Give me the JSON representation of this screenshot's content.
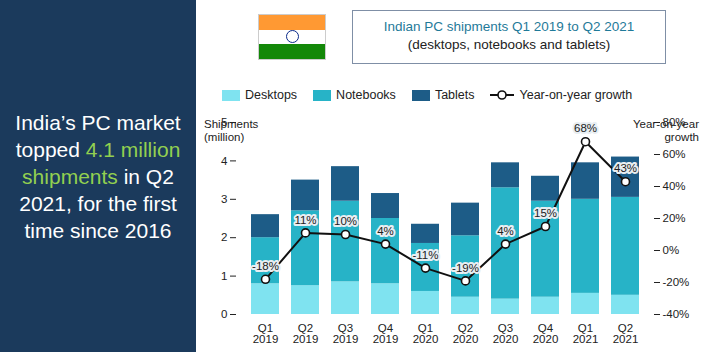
{
  "chart_data": {
    "type": "bar",
    "title": "Indian PC shipments Q1 2019 to Q2 2021",
    "subtitle": "(desktops, notebooks and tablets)",
    "annotations": [
      "India’s PC market topped",
      "4.1 million shipments",
      "in Q2 2021, for the first time since 2016"
    ],
    "categories": [
      "Q1\n2019",
      "Q2\n2019",
      "Q3\n2019",
      "Q4\n2019",
      "Q1\n2020",
      "Q2\n2020",
      "Q3\n2020",
      "Q4\n2020",
      "Q1\n2021",
      "Q2\n2021"
    ],
    "series": [
      {
        "name": "Desktops",
        "color": "#7fe3f0",
        "values": [
          0.8,
          0.75,
          0.85,
          0.8,
          0.6,
          0.45,
          0.4,
          0.45,
          0.55,
          0.5
        ]
      },
      {
        "name": "Notebooks",
        "color": "#27b3c7",
        "values": [
          1.2,
          1.95,
          2.1,
          1.7,
          1.25,
          1.6,
          2.9,
          2.5,
          2.45,
          2.55
        ]
      },
      {
        "name": "Tablets",
        "color": "#1d5c87",
        "values": [
          0.6,
          0.8,
          0.9,
          0.65,
          0.5,
          0.85,
          0.65,
          0.65,
          0.95,
          1.05
        ]
      },
      {
        "name": "Year-on-year growth",
        "type": "line",
        "axis": "y2",
        "color": "#111111",
        "marker": "circle",
        "values": [
          -18,
          11,
          10,
          4,
          -11,
          -19,
          4,
          15,
          68,
          43
        ],
        "value_labels": [
          "-18%",
          "11%",
          "10%",
          "4%",
          "-11%",
          "-19%",
          "4%",
          "15%",
          "68%",
          "43%"
        ]
      }
    ],
    "stacked": true,
    "data_labels": true,
    "legend": "top",
    "grid": false,
    "y_label": "Shipments\n(million)",
    "y2_label": "Year-on-year\ngrowth",
    "ylim": [
      0,
      5
    ],
    "yticks": [
      0,
      1,
      2,
      3,
      4,
      5
    ],
    "y2lim": [
      -40,
      80
    ],
    "y2ticks": [
      {
        "value": -40,
        "label": "-40%"
      },
      {
        "value": -20,
        "label": "-20%"
      },
      {
        "value": 0,
        "label": "0%"
      },
      {
        "value": 20,
        "label": "20%"
      },
      {
        "value": 40,
        "label": "40%"
      },
      {
        "value": 60,
        "label": "60%"
      },
      {
        "value": 80,
        "label": "80%"
      }
    ]
  }
}
